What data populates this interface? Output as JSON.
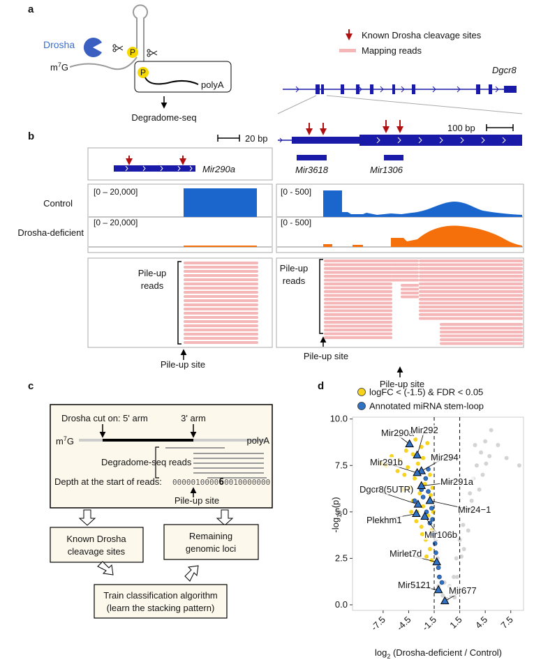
{
  "panels": {
    "a": "a",
    "b": "b",
    "c": "c",
    "d": "d"
  },
  "panel_a": {
    "enzyme": "Drosha",
    "phosphate": "P",
    "cap": {
      "base": "m",
      "sup": "7",
      "end": "G"
    },
    "tail": "polyA",
    "method": "Degradome-seq",
    "legend": [
      "Known Drosha cleavage sites",
      "Mapping reads"
    ],
    "gene": "Dgcr8"
  },
  "panel_b": {
    "scale_left": "20 bp",
    "scale_right": "100 bp",
    "genes": [
      "Mir290a",
      "Mir3618",
      "Mir1306"
    ],
    "tracks": [
      "Control",
      "Drosha-deficient"
    ],
    "ranges": [
      "[0 – 20,000]",
      "[0 – 20,000]",
      "[0 - 500]",
      "[0 - 500]"
    ],
    "pileup_reads": [
      "Pile-up",
      "reads"
    ],
    "pileup_site": "Pile-up site"
  },
  "panel_c": {
    "cut_label": "Drosha cut on: 5' arm",
    "arm3": "3' arm",
    "reads": "Degradome-seq reads",
    "depth_label": "Depth at the start of reads:",
    "depth": [
      "0000010000",
      "6",
      "0010000000"
    ],
    "site": "Pile-up site",
    "known": [
      "Known Drosha",
      "cleavage sites"
    ],
    "remaining": [
      "Remaining",
      "genomic loci"
    ],
    "train": [
      "Train classification algorithm",
      "(learn the stacking pattern)"
    ]
  },
  "chart_data": {
    "type": "scatter",
    "xlabel": {
      "pre": "log",
      "sub": "2",
      "post": " (Drosha-deficient / Control)"
    },
    "ylabel": {
      "pre": "-log",
      "sub": "10",
      "post": " (p)"
    },
    "xlim": [
      -11.1,
      9.0
    ],
    "ylim": [
      -0.3,
      10.1
    ],
    "xticks": [
      -7.5,
      -4.5,
      -1.5,
      1.5,
      4.5,
      7.5
    ],
    "yticks": [
      {
        "value": 0,
        "label": "0.0"
      },
      2.5,
      {
        "value": 5,
        "label": "5.0"
      },
      7.5,
      {
        "value": 10,
        "label": "10.0"
      }
    ],
    "vlines": [
      -1.5,
      1.5
    ],
    "series": [
      {
        "color": "#d4d4d4",
        "x": [
          0.5,
          0.8,
          1.1,
          1.5,
          1.9,
          2.3,
          2.7,
          3.1,
          3.5,
          4.0,
          4.5,
          5.2,
          3.0,
          2.0,
          4.2,
          3.8,
          5.0,
          6.0,
          7.0,
          8.5,
          -0.5,
          -0.8,
          -1.1,
          -1.3,
          -1.0,
          0.0,
          0.3,
          -0.3,
          1.2,
          2.5,
          0.9,
          3.3,
          4.6,
          2.9,
          1.7
        ],
        "values": [
          0.5,
          1.5,
          2.5,
          3.5,
          4.3,
          5.2,
          6.0,
          6.8,
          7.5,
          8.2,
          8.8,
          9.4,
          5.0,
          3.0,
          7.0,
          6.2,
          8.0,
          8.6,
          7.9,
          7.5,
          0.5,
          1.5,
          2.5,
          3.5,
          1.0,
          0.3,
          1.0,
          1.2,
          1.5,
          4.0,
          0.4,
          8.6,
          7.6,
          5.6,
          2.6
        ]
      },
      {
        "name": "logFC < (-1.5) & FDR < 0.05",
        "color": "#f7d31e",
        "x": [
          -2.0,
          -2.5,
          -1.8,
          -3.0,
          -2.2,
          -3.5,
          -2.8,
          -4.0,
          -1.9,
          -3.2,
          -4.4,
          -2.6,
          -3.8,
          -5.0,
          -2.0,
          -4.6,
          -3.4,
          -5.5,
          -2.8,
          -4.0,
          -3.0,
          -4.8,
          -6.5,
          -7.2,
          -7.8,
          -5.8,
          -1.7,
          -1.6,
          -2.4,
          -3.6,
          -4.2,
          -5.2,
          -2.3,
          -3.7,
          -1.8,
          -2.9
        ],
        "values": [
          3.0,
          3.5,
          4.0,
          4.2,
          4.8,
          5.0,
          5.3,
          5.6,
          5.9,
          6.0,
          6.3,
          6.5,
          6.8,
          7.0,
          7.0,
          7.4,
          7.6,
          7.8,
          7.9,
          8.1,
          8.5,
          8.3,
          8.0,
          7.5,
          7.6,
          7.2,
          6.3,
          5.0,
          2.6,
          4.5,
          5.0,
          6.2,
          8.7,
          8.9,
          2.4,
          3.8
        ]
      },
      {
        "name": "Annotated miRNA stem-loop",
        "color": "#2f72c4",
        "x": [
          -2.5,
          -2.2,
          -2.8,
          -1.8,
          -2.0,
          -1.6,
          -1.4,
          -1.3,
          -1.0,
          -0.9,
          -0.6,
          -3.0,
          -2.4,
          -1.7,
          -3.8,
          -2.2
        ],
        "values": [
          6.8,
          6.1,
          5.8,
          5.2,
          4.4,
          3.8,
          3.3,
          2.8,
          2.0,
          1.5,
          1.2,
          6.2,
          5.0,
          4.6,
          5.6,
          7.3
        ]
      }
    ],
    "labeled": {
      "color": "#2f72c4",
      "names": [
        "Mir290a",
        "Mir292",
        "Mir294",
        "Mir291b",
        "Mir291a",
        "Dgcr8(5UTR)",
        "Mir24−1",
        "Plekhm1",
        "Mir106b",
        "Mirlet7d",
        "Mir5121",
        "Mir677"
      ],
      "x": [
        -4.4,
        -3.5,
        -3.0,
        -3.5,
        -3.0,
        -3.4,
        -2.0,
        -3.6,
        -2.6,
        -1.2,
        -1.0,
        -0.25
      ],
      "values": [
        8.65,
        8.05,
        7.2,
        7.1,
        6.4,
        5.4,
        5.6,
        4.9,
        4.75,
        2.3,
        0.8,
        0.2
      ]
    }
  }
}
